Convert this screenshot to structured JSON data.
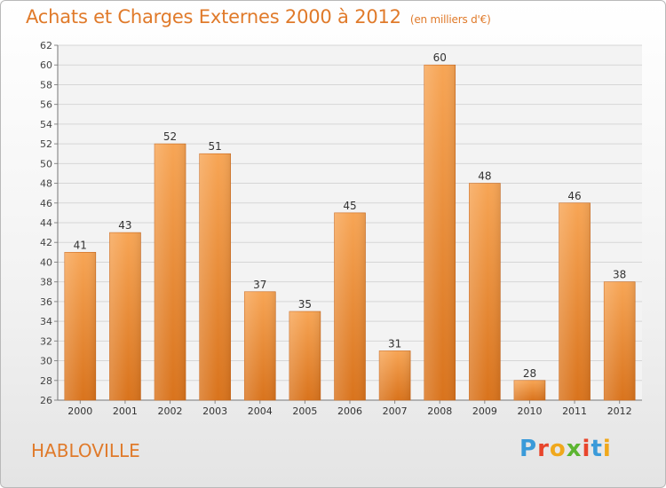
{
  "header": {
    "title": "Achats et Charges Externes 2000 à 2012",
    "subtitle": "(en milliers d'€)"
  },
  "footer": {
    "town": "HABLOVILLE",
    "logo_letters": [
      "P",
      "r",
      "o",
      "x",
      "i",
      "t",
      "i"
    ],
    "logo_colors": [
      "#3a9ad9",
      "#e8452c",
      "#f0a81c",
      "#5cb531",
      "#e8452c",
      "#3a9ad9",
      "#f0a81c"
    ]
  },
  "chart_data": {
    "type": "bar",
    "title": "Achats et Charges Externes 2000 à 2012",
    "subtitle": "(en milliers d'€)",
    "categories": [
      "2000",
      "2001",
      "2002",
      "2003",
      "2004",
      "2005",
      "2006",
      "2007",
      "2008",
      "2009",
      "2010",
      "2011",
      "2012"
    ],
    "values": [
      41,
      43,
      52,
      51,
      37,
      35,
      45,
      31,
      60,
      48,
      28,
      46,
      38
    ],
    "data_labels": [
      "41",
      "43",
      "52",
      "51",
      "37",
      "35",
      "45",
      "31",
      "60",
      "48",
      "28",
      "46",
      "38"
    ],
    "ylim": [
      26,
      62
    ],
    "yticks": [
      "26",
      "28",
      "30",
      "32",
      "34",
      "36",
      "38",
      "40",
      "42",
      "44",
      "46",
      "48",
      "50",
      "52",
      "54",
      "56",
      "58",
      "60",
      "62"
    ],
    "grid": true,
    "bar_color": "#f0933e"
  }
}
